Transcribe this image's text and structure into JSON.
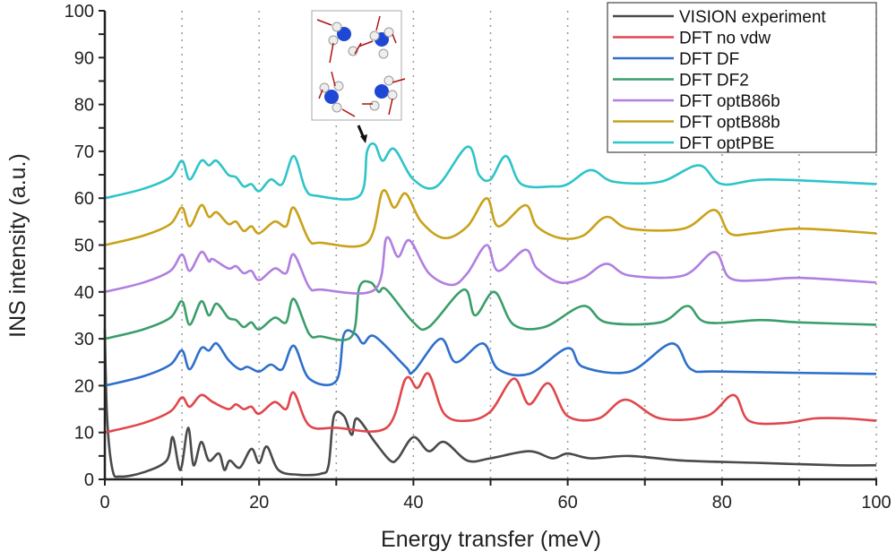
{
  "chart_data": {
    "type": "line",
    "title": "",
    "xlabel": "Energy transfer (meV)",
    "ylabel": "INS intensity (a.u.)",
    "xlim": [
      0,
      100
    ],
    "ylim": [
      0,
      100
    ],
    "xticks": [
      0,
      20,
      40,
      60,
      80,
      100
    ],
    "yticks": [
      0,
      10,
      20,
      30,
      40,
      50,
      60,
      70,
      80,
      90,
      100
    ],
    "grid": "vertical dotted lines every 10 meV",
    "legend_position": "top-right",
    "inset": "ammonia molecules with red displacement arrows",
    "series": [
      {
        "name": "VISION experiment",
        "color": "#4a4a4a",
        "points": [
          [
            0,
            32
          ],
          [
            0.3,
            13
          ],
          [
            1,
            2
          ],
          [
            2,
            0.6
          ],
          [
            5,
            1.5
          ],
          [
            8,
            4
          ],
          [
            8.8,
            9
          ],
          [
            9.8,
            2
          ],
          [
            10.8,
            11
          ],
          [
            11.5,
            3
          ],
          [
            12.5,
            8
          ],
          [
            13.5,
            4
          ],
          [
            14.8,
            5.5
          ],
          [
            15.5,
            2
          ],
          [
            16.2,
            4
          ],
          [
            17.5,
            2.5
          ],
          [
            19,
            6.5
          ],
          [
            20,
            3.5
          ],
          [
            21,
            7
          ],
          [
            22.5,
            2
          ],
          [
            25,
            1
          ],
          [
            28,
            1.2
          ],
          [
            29,
            3
          ],
          [
            29.7,
            13.5
          ],
          [
            31,
            13.5
          ],
          [
            32,
            9.5
          ],
          [
            32.7,
            13
          ],
          [
            35,
            8
          ],
          [
            37,
            4
          ],
          [
            38,
            4.5
          ],
          [
            40,
            9
          ],
          [
            42,
            6
          ],
          [
            44,
            8
          ],
          [
            47,
            4
          ],
          [
            50,
            4.5
          ],
          [
            55,
            6
          ],
          [
            58,
            4.5
          ],
          [
            60,
            5.5
          ],
          [
            63,
            4.5
          ],
          [
            68,
            5
          ],
          [
            75,
            4
          ],
          [
            85,
            3.5
          ],
          [
            95,
            3
          ],
          [
            100,
            3
          ]
        ]
      },
      {
        "name": "DFT no vdw",
        "color": "#e0474c",
        "points": [
          [
            0,
            10
          ],
          [
            5,
            12
          ],
          [
            8.5,
            14.5
          ],
          [
            10,
            17.5
          ],
          [
            11,
            15.5
          ],
          [
            12.5,
            18
          ],
          [
            14,
            16.5
          ],
          [
            16,
            15
          ],
          [
            17,
            16
          ],
          [
            18,
            15
          ],
          [
            19,
            15.5
          ],
          [
            20,
            14
          ],
          [
            22,
            16.5
          ],
          [
            23.5,
            15
          ],
          [
            24.5,
            18.5
          ],
          [
            26.5,
            11.5
          ],
          [
            30,
            11
          ],
          [
            36.5,
            11
          ],
          [
            39,
            21.5
          ],
          [
            40.5,
            19.5
          ],
          [
            42,
            22.5
          ],
          [
            44,
            14
          ],
          [
            47,
            12.5
          ],
          [
            50,
            14.5
          ],
          [
            53,
            21.5
          ],
          [
            55,
            16
          ],
          [
            57.5,
            20.5
          ],
          [
            60,
            13.5
          ],
          [
            64,
            13
          ],
          [
            67.5,
            17
          ],
          [
            72,
            13
          ],
          [
            78,
            13.5
          ],
          [
            81.5,
            18
          ],
          [
            83.5,
            12.5
          ],
          [
            88,
            12
          ],
          [
            92,
            13
          ],
          [
            96,
            13
          ],
          [
            100,
            12.5
          ]
        ]
      },
      {
        "name": "DFT DF",
        "color": "#2e6fcc",
        "points": [
          [
            0,
            20
          ],
          [
            5,
            22
          ],
          [
            8.5,
            24.5
          ],
          [
            10,
            27.5
          ],
          [
            11,
            23.5
          ],
          [
            12.5,
            28
          ],
          [
            13.5,
            27.5
          ],
          [
            14.5,
            29
          ],
          [
            16,
            25.5
          ],
          [
            17.5,
            23.5
          ],
          [
            18.5,
            24
          ],
          [
            20,
            23
          ],
          [
            21.5,
            24.5
          ],
          [
            23,
            23.5
          ],
          [
            24.5,
            28.5
          ],
          [
            26.5,
            21.5
          ],
          [
            30,
            21
          ],
          [
            31,
            31
          ],
          [
            32.5,
            31
          ],
          [
            33.5,
            29
          ],
          [
            35,
            30.5
          ],
          [
            39,
            24
          ],
          [
            40,
            23
          ],
          [
            43.5,
            30
          ],
          [
            45.5,
            25
          ],
          [
            49,
            29
          ],
          [
            51,
            23.5
          ],
          [
            55,
            22.5
          ],
          [
            60,
            28
          ],
          [
            62,
            24
          ],
          [
            68,
            23
          ],
          [
            73.5,
            29
          ],
          [
            76,
            23.5
          ],
          [
            80,
            23
          ],
          [
            100,
            22.5
          ]
        ]
      },
      {
        "name": "DFT DF2",
        "color": "#3a9e6a",
        "points": [
          [
            0,
            30
          ],
          [
            5,
            32
          ],
          [
            8.5,
            34.5
          ],
          [
            10,
            38
          ],
          [
            11,
            33
          ],
          [
            12.5,
            38
          ],
          [
            13.5,
            35
          ],
          [
            14.5,
            37.5
          ],
          [
            16,
            34.5
          ],
          [
            17,
            34
          ],
          [
            18,
            32.5
          ],
          [
            19,
            33.5
          ],
          [
            20,
            32
          ],
          [
            22,
            34.5
          ],
          [
            23.5,
            33.5
          ],
          [
            24.5,
            38.5
          ],
          [
            26.5,
            31
          ],
          [
            28,
            30.5
          ],
          [
            32,
            30.5
          ],
          [
            33,
            41
          ],
          [
            34.5,
            42
          ],
          [
            35.5,
            40
          ],
          [
            36.5,
            40.5
          ],
          [
            40,
            33.5
          ],
          [
            42,
            32.5
          ],
          [
            46.5,
            40.5
          ],
          [
            48,
            35
          ],
          [
            50.5,
            40
          ],
          [
            53,
            33
          ],
          [
            57,
            32.5
          ],
          [
            62,
            37
          ],
          [
            65,
            33.5
          ],
          [
            72,
            33.5
          ],
          [
            75.5,
            37
          ],
          [
            78,
            33.5
          ],
          [
            85,
            34
          ],
          [
            90,
            33.5
          ],
          [
            100,
            33
          ]
        ]
      },
      {
        "name": "DFT optB86b",
        "color": "#b07fe0",
        "points": [
          [
            0,
            40
          ],
          [
            5,
            42
          ],
          [
            8.5,
            44.5
          ],
          [
            10,
            48
          ],
          [
            11,
            44.5
          ],
          [
            12.5,
            48.5
          ],
          [
            13.5,
            46.5
          ],
          [
            14,
            47
          ],
          [
            16,
            45
          ],
          [
            17,
            45.5
          ],
          [
            18,
            44
          ],
          [
            19,
            44.5
          ],
          [
            20,
            42.5
          ],
          [
            22,
            45
          ],
          [
            23.5,
            44
          ],
          [
            24.5,
            48
          ],
          [
            26.5,
            41
          ],
          [
            28,
            40.5
          ],
          [
            35,
            40.5
          ],
          [
            36.5,
            51.5
          ],
          [
            38,
            47.5
          ],
          [
            39.5,
            51
          ],
          [
            42,
            44
          ],
          [
            45,
            41.5
          ],
          [
            47,
            44
          ],
          [
            49.5,
            50
          ],
          [
            51,
            44.5
          ],
          [
            54.5,
            49
          ],
          [
            56,
            45
          ],
          [
            59,
            42
          ],
          [
            62,
            43
          ],
          [
            65,
            46
          ],
          [
            68,
            43.5
          ],
          [
            75,
            43.5
          ],
          [
            79,
            48.5
          ],
          [
            81,
            43
          ],
          [
            85,
            42.5
          ],
          [
            90,
            43
          ],
          [
            100,
            42
          ]
        ]
      },
      {
        "name": "DFT optB88b",
        "color": "#c9a21a",
        "points": [
          [
            0,
            50
          ],
          [
            5,
            52
          ],
          [
            8.5,
            54.5
          ],
          [
            10,
            58
          ],
          [
            11,
            54
          ],
          [
            12.5,
            58.5
          ],
          [
            13.5,
            56
          ],
          [
            14.5,
            57
          ],
          [
            16,
            54.5
          ],
          [
            17,
            55
          ],
          [
            18,
            53
          ],
          [
            19,
            54
          ],
          [
            20,
            52.5
          ],
          [
            22,
            55
          ],
          [
            23.5,
            54
          ],
          [
            24.5,
            58
          ],
          [
            26.5,
            51
          ],
          [
            28,
            50.5
          ],
          [
            34,
            50.5
          ],
          [
            36,
            61.5
          ],
          [
            37.5,
            58
          ],
          [
            39,
            61
          ],
          [
            41,
            55
          ],
          [
            44,
            51.5
          ],
          [
            47,
            54
          ],
          [
            49.5,
            60
          ],
          [
            51,
            54
          ],
          [
            54.5,
            58.5
          ],
          [
            56,
            54
          ],
          [
            59,
            51.5
          ],
          [
            62,
            52
          ],
          [
            65,
            56
          ],
          [
            68,
            53.5
          ],
          [
            75,
            53.5
          ],
          [
            79,
            57.5
          ],
          [
            81,
            52.5
          ],
          [
            84,
            52.5
          ],
          [
            90,
            53.5
          ],
          [
            100,
            52.5
          ]
        ]
      },
      {
        "name": "DFT optPBE",
        "color": "#2ec4c8",
        "points": [
          [
            0,
            60
          ],
          [
            5,
            62
          ],
          [
            8.5,
            64.5
          ],
          [
            10,
            68
          ],
          [
            11,
            64
          ],
          [
            12.5,
            68
          ],
          [
            13.5,
            67
          ],
          [
            14.5,
            68
          ],
          [
            16,
            65
          ],
          [
            17,
            64.5
          ],
          [
            18,
            62.5
          ],
          [
            19,
            63
          ],
          [
            20,
            61.5
          ],
          [
            21.5,
            64
          ],
          [
            23,
            63
          ],
          [
            24.5,
            69
          ],
          [
            26,
            62
          ],
          [
            27.5,
            60.5
          ],
          [
            33,
            60.5
          ],
          [
            34,
            70
          ],
          [
            35,
            71.5
          ],
          [
            36,
            68
          ],
          [
            37.5,
            70.5
          ],
          [
            40,
            64
          ],
          [
            43,
            62.5
          ],
          [
            47,
            71
          ],
          [
            48.5,
            65
          ],
          [
            50,
            64
          ],
          [
            52,
            69
          ],
          [
            54,
            63
          ],
          [
            58,
            62.5
          ],
          [
            60,
            63
          ],
          [
            63,
            66
          ],
          [
            66,
            63.5
          ],
          [
            72,
            63.5
          ],
          [
            77,
            67
          ],
          [
            80,
            63
          ],
          [
            86,
            64
          ],
          [
            100,
            63
          ]
        ]
      }
    ]
  }
}
